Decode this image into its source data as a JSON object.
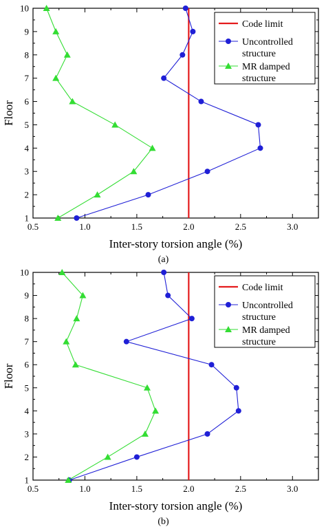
{
  "chart_data": [
    {
      "type": "line",
      "caption": "(a)",
      "xlabel": "Inter-story torsion angle (%)",
      "ylabel": "Floor",
      "xlim": [
        0.5,
        3.25
      ],
      "ylim": [
        1,
        10
      ],
      "xticks": [
        "0.5",
        "1.0",
        "1.5",
        "2.0",
        "2.5",
        "3.0"
      ],
      "yticks": [
        "1",
        "2",
        "3",
        "4",
        "5",
        "6",
        "7",
        "8",
        "9",
        "10"
      ],
      "grid": false,
      "legend_position": "top-right",
      "code_limit": 2.0,
      "series": [
        {
          "name": "Code limit",
          "color": "#e41a1c",
          "marker": "none",
          "legend": [
            "Code limit"
          ]
        },
        {
          "name": "Uncontrolled structure",
          "legend": [
            "Uncontrolled",
            "structure"
          ],
          "color": "#1f1fd6",
          "marker": "circle",
          "x": [
            0.92,
            1.61,
            2.18,
            2.69,
            2.67,
            2.12,
            1.76,
            1.94,
            2.04,
            1.97
          ],
          "y": [
            1,
            2,
            3,
            4,
            5,
            6,
            7,
            8,
            9,
            10
          ]
        },
        {
          "name": "MR damped structure",
          "legend": [
            "MR damped",
            "structure"
          ],
          "color": "#33dd33",
          "marker": "triangle",
          "x": [
            0.74,
            1.12,
            1.47,
            1.65,
            1.29,
            0.88,
            0.72,
            0.83,
            0.72,
            0.63
          ],
          "y": [
            1,
            2,
            3,
            4,
            5,
            6,
            7,
            8,
            9,
            10
          ]
        }
      ]
    },
    {
      "type": "line",
      "caption": "(b)",
      "xlabel": "Inter-story torsion angle (%)",
      "ylabel": "Floor",
      "xlim": [
        0.5,
        3.25
      ],
      "ylim": [
        1,
        10
      ],
      "xticks": [
        "0.5",
        "1.0",
        "1.5",
        "2.0",
        "2.5",
        "3.0"
      ],
      "yticks": [
        "1",
        "2",
        "3",
        "4",
        "5",
        "6",
        "7",
        "8",
        "9",
        "10"
      ],
      "grid": false,
      "legend_position": "top-right",
      "code_limit": 2.0,
      "series": [
        {
          "name": "Code limit",
          "color": "#e41a1c",
          "marker": "none",
          "legend": [
            "Code limit"
          ]
        },
        {
          "name": "Uncontrolled structure",
          "legend": [
            "Uncontrolled",
            "structure"
          ],
          "color": "#1f1fd6",
          "marker": "circle",
          "x": [
            0.85,
            1.5,
            2.18,
            2.48,
            2.46,
            2.22,
            1.4,
            2.03,
            1.8,
            1.76
          ],
          "y": [
            1,
            2,
            3,
            4,
            5,
            6,
            7,
            8,
            9,
            10
          ]
        },
        {
          "name": "MR damped structure",
          "legend": [
            "MR damped",
            "structure"
          ],
          "color": "#33dd33",
          "marker": "triangle",
          "x": [
            0.84,
            1.22,
            1.58,
            1.68,
            1.6,
            0.91,
            0.82,
            0.92,
            0.98,
            0.78
          ],
          "y": [
            1,
            2,
            3,
            4,
            5,
            6,
            7,
            8,
            9,
            10
          ]
        }
      ]
    }
  ]
}
